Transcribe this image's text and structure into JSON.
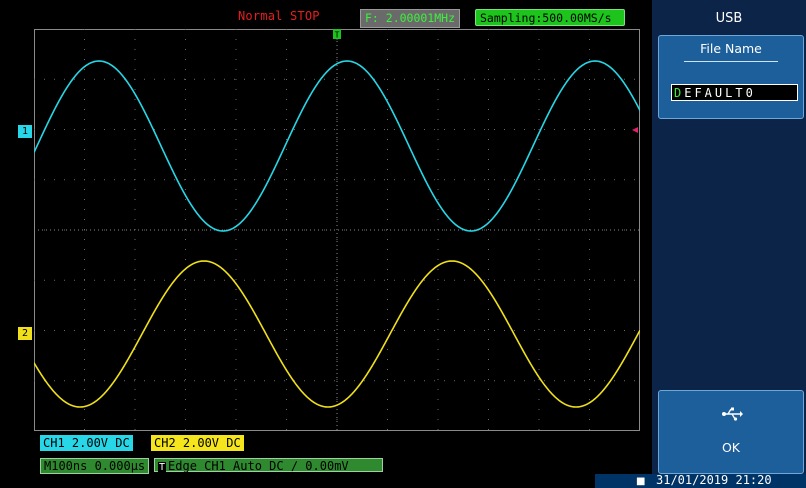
{
  "status": {
    "state": "Normal  STOP",
    "frequency": "F: 2.00001MHz",
    "sampling": "Sampling:500.00MS/s"
  },
  "channels": {
    "ch1_marker": "1",
    "ch2_marker": "2",
    "ch1_info": "CH1  2.00V  DC",
    "ch2_info": "CH2  2.00V  DC",
    "ch1_color": "#27d7e7",
    "ch2_color": "#f0e01c"
  },
  "timebase": {
    "info": "M100ns 0.000µs"
  },
  "trigger": {
    "marker": "T",
    "badge": "T",
    "info": "Edge  CH1  Auto  DC ∕  0.00mV",
    "level_marker_color": "#e0206a"
  },
  "menu": {
    "title": "USB",
    "file_name_label": "File Name",
    "file_name_cursor": "D",
    "file_name_rest": "EFAULT0",
    "ok_label": "OK",
    "ok_icon": "usb-icon"
  },
  "footer": {
    "date": "31/01/2019  21:20"
  }
}
